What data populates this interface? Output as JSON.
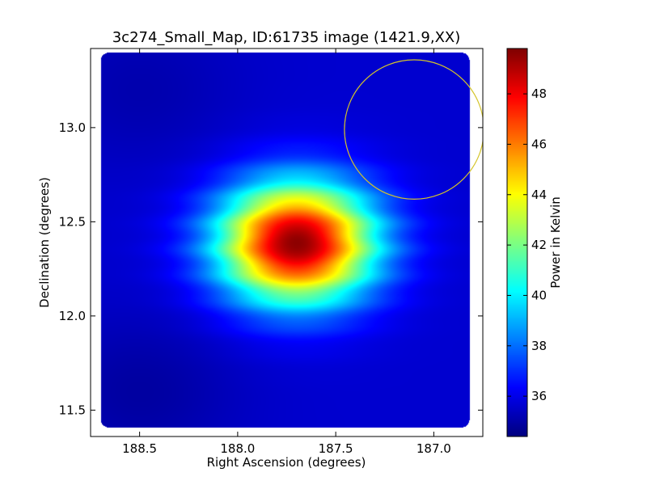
{
  "chart_data": {
    "type": "heatmap",
    "title": "3c274_Small_Map, ID:61735 image (1421.9,XX)",
    "xlabel": "Right Ascension (degrees)",
    "ylabel": "Declination (degrees)",
    "xlim": [
      188.75,
      186.75
    ],
    "ylim": [
      11.36,
      13.42
    ],
    "x_ticks": [
      188.5,
      188.0,
      187.5,
      187.0
    ],
    "x_tick_labels": [
      "188.5",
      "188.0",
      "187.5",
      "187.0"
    ],
    "y_ticks": [
      11.5,
      12.0,
      12.5,
      13.0
    ],
    "y_tick_labels": [
      "11.5",
      "12.0",
      "12.5",
      "13.0"
    ],
    "colorbar": {
      "label": "Power in Kelvin",
      "range": [
        34.4,
        49.8
      ],
      "ticks": [
        36,
        38,
        40,
        42,
        44,
        46,
        48
      ],
      "tick_labels": [
        "36",
        "38",
        "40",
        "42",
        "44",
        "46",
        "48"
      ],
      "colormap": "jet"
    },
    "map": {
      "background_level": 35.6,
      "low_corner_level": 34.9,
      "peak_level": 49.6,
      "peak_ra": 187.7,
      "peak_dec": 12.39,
      "data_extent_ra": [
        188.7,
        186.82
      ],
      "data_extent_dec": [
        11.41,
        13.4
      ]
    },
    "overlay_circle": {
      "center_ra": 187.1,
      "center_dec": 12.99,
      "radius_deg": 0.37,
      "color": "#d4c42a"
    },
    "grid": false,
    "legend": "none"
  }
}
